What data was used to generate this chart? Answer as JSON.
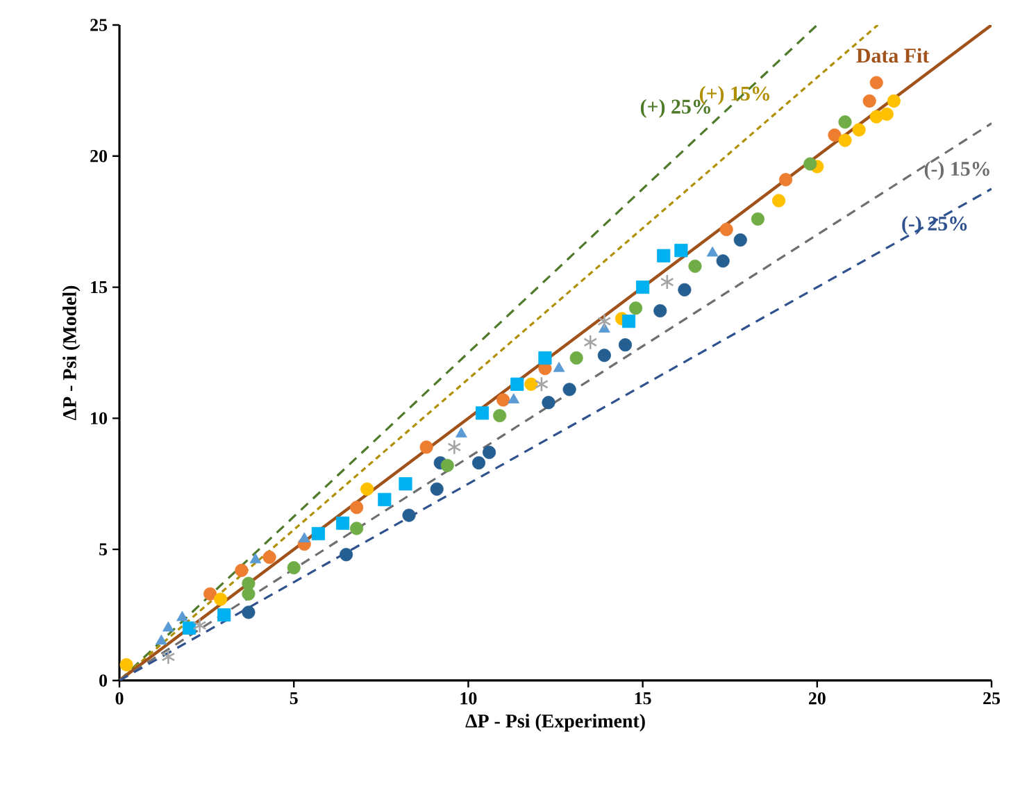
{
  "chart_data": {
    "type": "scatter",
    "xlabel": "ΔP - Psi (Experiment)",
    "ylabel": "ΔP - Psi  (Model)",
    "xlim": [
      0,
      25
    ],
    "ylim": [
      0,
      25
    ],
    "xticks": [
      0,
      5,
      10,
      15,
      20,
      25
    ],
    "yticks": [
      0,
      5,
      10,
      15,
      20,
      25
    ],
    "grid": false,
    "series": [
      {
        "color": "#255e91",
        "marker": "circle",
        "x": [
          3.7,
          6.5,
          8.3,
          9.1,
          9.2,
          10.3,
          10.6,
          12.3,
          12.9,
          13.9,
          14.5,
          15.5,
          16.2,
          17.3,
          17.8
        ],
        "values": [
          2.6,
          4.8,
          6.3,
          7.3,
          8.3,
          8.3,
          8.7,
          10.6,
          11.1,
          12.4,
          12.8,
          14.1,
          14.9,
          16.0,
          16.8
        ]
      },
      {
        "color": "#ed7d31",
        "marker": "circle",
        "x": [
          2.6,
          3.5,
          4.3,
          5.3,
          6.8,
          8.8,
          11.0,
          12.2,
          17.4,
          19.1,
          20.5,
          21.5,
          21.7
        ],
        "values": [
          3.3,
          4.2,
          4.7,
          5.2,
          6.6,
          8.9,
          10.7,
          11.9,
          17.2,
          19.1,
          20.8,
          22.1,
          22.8
        ]
      },
      {
        "color": "#ffc000",
        "marker": "circle",
        "x": [
          0.2,
          2.9,
          7.1,
          11.8,
          14.4,
          14.9,
          18.9,
          20.0,
          20.8,
          21.2,
          21.7,
          22.0,
          22.2
        ],
        "values": [
          0.6,
          3.1,
          7.3,
          11.3,
          13.8,
          null,
          18.3,
          19.6,
          20.6,
          21.0,
          21.5,
          21.6,
          22.1
        ]
      },
      {
        "color": "#70ad47",
        "marker": "circle",
        "x": [
          3.7,
          3.7,
          5.0,
          6.8,
          8.2,
          9.4,
          10.9,
          13.1,
          14.8,
          16.5,
          18.3,
          19.8,
          20.8
        ],
        "values": [
          3.7,
          3.3,
          4.3,
          5.8,
          null,
          8.2,
          10.1,
          12.3,
          14.2,
          15.8,
          17.6,
          19.7,
          21.3
        ]
      },
      {
        "color": "#00b0f0",
        "marker": "square",
        "x": [
          2.0,
          3.0,
          5.7,
          6.4,
          7.6,
          8.2,
          10.4,
          11.4,
          12.2,
          14.6,
          15.0,
          15.6,
          16.1
        ],
        "values": [
          2.0,
          2.5,
          5.6,
          6.0,
          6.9,
          7.5,
          10.2,
          11.3,
          12.3,
          13.7,
          15.0,
          16.2,
          16.4
        ]
      },
      {
        "color": "#5b9bd5",
        "marker": "triangle",
        "x": [
          1.2,
          1.4,
          1.8,
          3.9,
          5.3,
          9.8,
          11.3,
          12.6,
          13.9,
          17.0
        ],
        "values": [
          1.5,
          2.0,
          2.4,
          4.6,
          5.4,
          9.4,
          10.7,
          11.9,
          13.4,
          16.3
        ]
      },
      {
        "color": "#a5a5a5",
        "marker": "cross",
        "x": [
          1.4,
          2.3,
          9.6,
          12.1,
          13.5,
          13.9,
          15.7
        ],
        "values": [
          0.9,
          2.1,
          8.9,
          11.3,
          12.9,
          13.7,
          15.2
        ]
      },
      {
        "type": "line",
        "name": "(+) 25%",
        "color": "#4e7a2a",
        "line_style": "dashed",
        "marker": "none",
        "x": [
          0,
          20
        ],
        "values": [
          0,
          25
        ]
      },
      {
        "type": "line",
        "name": "(+) 15%",
        "color": "#b08f00",
        "line_style": "dotted",
        "marker": "none",
        "x": [
          0,
          21.74
        ],
        "values": [
          0,
          25
        ]
      },
      {
        "type": "line",
        "name": "Data Fit",
        "color": "#a0521a",
        "line_style": "solid",
        "marker": "none",
        "x": [
          0,
          25
        ],
        "values": [
          0,
          25
        ]
      },
      {
        "type": "line",
        "name": "(-) 15%",
        "color": "#6e6e6e",
        "line_style": "dashed",
        "marker": "none",
        "x": [
          0,
          25
        ],
        "values": [
          0,
          21.25
        ]
      },
      {
        "type": "line",
        "name": "(-) 25%",
        "color": "#2f528f",
        "line_style": "dashed",
        "marker": "none",
        "x": [
          0,
          25
        ],
        "values": [
          0,
          18.75
        ]
      }
    ]
  }
}
